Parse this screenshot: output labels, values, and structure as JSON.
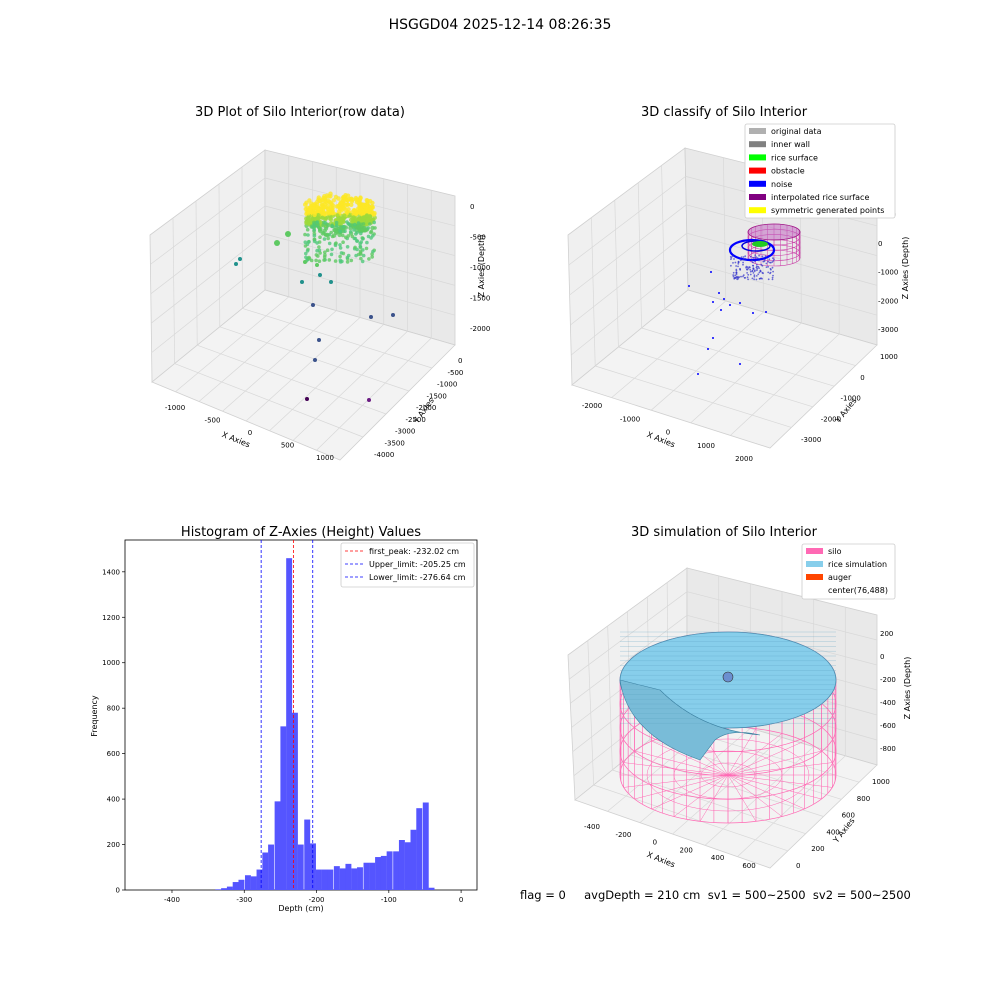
{
  "suptitle": "HSGGD04 2025-12-14 08:26:35",
  "status_text": "flag = 0     avgDepth = 210 cm  sv1 = 500~2500  sv2 = 500~2500",
  "chart_data": [
    {
      "type": "scatter",
      "title": "3D Plot of Silo Interior(row data)",
      "xlabel": "X Axies",
      "ylabel": "Y Axies",
      "zlabel": "Z Axies (Depth)",
      "xticks": [
        "-1000",
        "-500",
        "0",
        "500",
        "1000"
      ],
      "yticks": [
        "0",
        "-500",
        "-1000",
        "-1500",
        "-2000",
        "-2500",
        "-3000",
        "-3500",
        "-4000"
      ],
      "zticks": [
        "0",
        "-500",
        "-1000",
        "-1500",
        "-2000"
      ],
      "colormap": "viridis",
      "description_values": {
        "dense_cluster_z_range": [
          -700,
          -50
        ],
        "outlier_min_z": -2300
      }
    },
    {
      "type": "scatter",
      "title": "3D classify of Silo Interior",
      "xlabel": "X Axies",
      "ylabel": "Y Axies",
      "zlabel": "Z Axies (Depth)",
      "xticks": [
        "-2000",
        "-1000",
        "0",
        "1000",
        "2000"
      ],
      "yticks": [
        "1000",
        "0",
        "-1000",
        "-2000",
        "-3000"
      ],
      "zticks": [
        "1000",
        "0",
        "-1000",
        "-2000",
        "-3000"
      ],
      "legend": [
        {
          "label": "original data",
          "color": "#b0b0b0"
        },
        {
          "label": "inner wall",
          "color": "#808080"
        },
        {
          "label": "rice surface",
          "color": "#00ff00"
        },
        {
          "label": "obstacle",
          "color": "#ff0000"
        },
        {
          "label": "noise",
          "color": "#0000ff"
        },
        {
          "label": "interpolated rice surface",
          "color": "#800080"
        },
        {
          "label": "symmetric generated points",
          "color": "#ffff00"
        }
      ],
      "legend_position": "top-right"
    },
    {
      "type": "bar",
      "title": "Histogram of Z-Axies (Height) Values",
      "xlabel": "Depth (cm)",
      "ylabel": "Frequency",
      "xlim": [
        -465,
        22
      ],
      "ylim": [
        0,
        1540
      ],
      "xticks": [
        -400,
        -300,
        -200,
        -100,
        0
      ],
      "yticks": [
        0,
        200,
        400,
        600,
        800,
        1000,
        1200,
        1400
      ],
      "bar_color": "#5555ff",
      "bin_width": 8.2,
      "bin_starts": [
        -340,
        -332,
        -324,
        -316,
        -308,
        -299,
        -291,
        -283,
        -275,
        -267,
        -258,
        -250,
        -242,
        -234,
        -226,
        -217,
        -209,
        -201,
        -193,
        -185,
        -176,
        -168,
        -160,
        -152,
        -144,
        -135,
        -127,
        -119,
        -111,
        -103,
        -94,
        -86,
        -78,
        -70,
        -62,
        -53,
        -45,
        -37,
        -29,
        -21,
        -12,
        -4
      ],
      "counts": [
        3,
        8,
        15,
        35,
        45,
        65,
        60,
        90,
        165,
        200,
        390,
        720,
        1460,
        780,
        200,
        310,
        205,
        90,
        90,
        90,
        105,
        95,
        115,
        95,
        100,
        120,
        120,
        145,
        150,
        170,
        170,
        220,
        210,
        265,
        360,
        385,
        10,
        0,
        0,
        0,
        0,
        0
      ],
      "vlines": [
        {
          "label": "first_peak: -232.02 cm",
          "x": -232.02,
          "color": "#ff0000"
        },
        {
          "label": "Upper_limit: -205.25 cm",
          "x": -205.25,
          "color": "#0000ff"
        },
        {
          "label": "Lower_limit: -276.64 cm",
          "x": -276.64,
          "color": "#0000ff"
        }
      ],
      "legend_position": "top-right"
    },
    {
      "type": "surface",
      "title": "3D simulation of Silo Interior",
      "xlabel": "X Axies",
      "ylabel": "Y Axies",
      "zlabel": "Z Axies (Depth)",
      "xticks": [
        "-400",
        "-200",
        "0",
        "200",
        "400",
        "600"
      ],
      "yticks": [
        "1000",
        "800",
        "600",
        "400",
        "200",
        "0"
      ],
      "zticks": [
        "200",
        "0",
        "-200",
        "-400",
        "-600",
        "-800"
      ],
      "legend": [
        {
          "label": "silo",
          "color": "#ff69b4"
        },
        {
          "label": "rice simulation",
          "color": "#87ceeb"
        },
        {
          "label": "auger",
          "color": "#ff4500"
        },
        {
          "label": "center(76,488)",
          "color": ""
        }
      ],
      "legend_position": "top-right"
    }
  ]
}
